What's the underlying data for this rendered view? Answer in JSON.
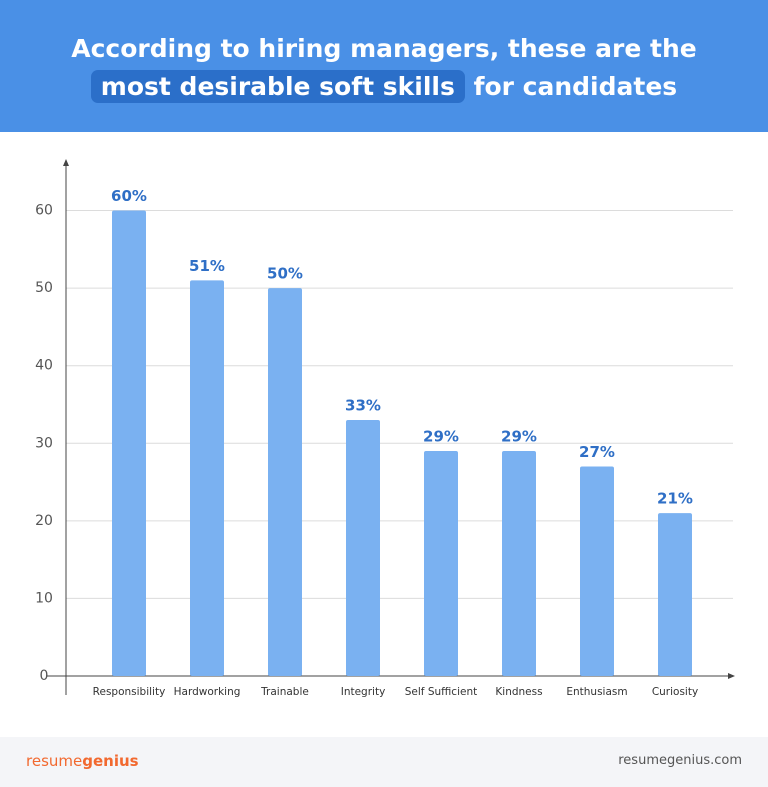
{
  "header": {
    "title_line1": "According to hiring managers, these are the",
    "title_highlight": "most desirable soft skills",
    "title_rest": "for candidates"
  },
  "chart_data": {
    "type": "bar",
    "categories": [
      "Responsibility",
      "Hardworking",
      "Trainable",
      "Integrity",
      "Self Sufficient",
      "Kindness",
      "Enthusiasm",
      "Curiosity"
    ],
    "values": [
      60,
      51,
      50,
      33,
      29,
      29,
      27,
      21
    ],
    "value_labels": [
      "60%",
      "51%",
      "50%",
      "33%",
      "29%",
      "29%",
      "27%",
      "21%"
    ],
    "color": "#7ab1f1",
    "label_color": "#2f6fc6",
    "ylim": [
      0,
      66
    ],
    "yticks": [
      0,
      10,
      20,
      30,
      40,
      50,
      60
    ],
    "grid": true
  },
  "footer": {
    "logo": [
      "resume",
      "genius"
    ],
    "url": "resumegenius.com"
  }
}
